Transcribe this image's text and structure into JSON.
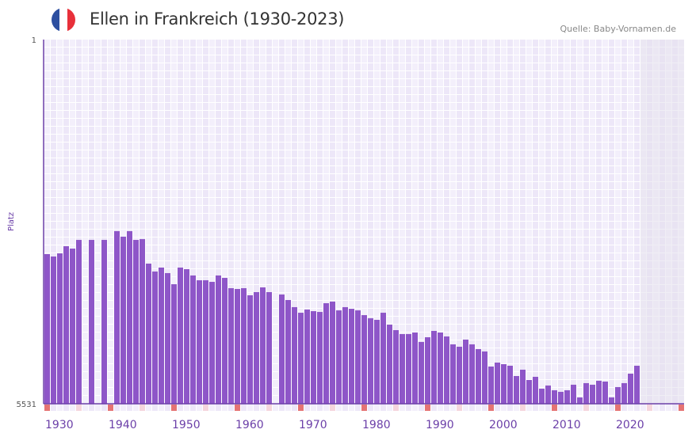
{
  "header": {
    "title": "Ellen in Frankreich (1930-2023)",
    "source": "Quelle: Baby-Vornamen.de",
    "flag_icon": "france-flag-icon",
    "flag_colors": [
      "#2d4fa0",
      "#ffffff",
      "#e8303a"
    ]
  },
  "colors": {
    "bar": "#8e56c8",
    "axis": "#6b3fa8",
    "marker_decade": "#e57373",
    "marker_half": "#f5d5dd",
    "future_shade": "#e4e0ec"
  },
  "chart_data": {
    "type": "bar",
    "title": "Ellen in Frankreich (1930-2023)",
    "xlabel": "",
    "ylabel": "Platz",
    "y_inverted": true,
    "ylim": [
      1,
      5531
    ],
    "ytick_labels": [
      "1",
      "5531"
    ],
    "xlim": [
      1930,
      2030
    ],
    "xtick_labels": [
      "1930",
      "1940",
      "1950",
      "1960",
      "1970",
      "1980",
      "1990",
      "2000",
      "2010",
      "2020"
    ],
    "grid": true,
    "x": [
      1930,
      1931,
      1932,
      1933,
      1934,
      1935,
      1936,
      1937,
      1938,
      1939,
      1940,
      1941,
      1942,
      1943,
      1944,
      1945,
      1946,
      1947,
      1948,
      1949,
      1950,
      1951,
      1952,
      1953,
      1954,
      1955,
      1956,
      1957,
      1958,
      1959,
      1960,
      1961,
      1962,
      1963,
      1964,
      1965,
      1966,
      1967,
      1968,
      1969,
      1970,
      1971,
      1972,
      1973,
      1974,
      1975,
      1976,
      1977,
      1978,
      1979,
      1980,
      1981,
      1982,
      1983,
      1984,
      1985,
      1986,
      1987,
      1988,
      1989,
      1990,
      1991,
      1992,
      1993,
      1994,
      1995,
      1996,
      1997,
      1998,
      1999,
      2000,
      2001,
      2002,
      2003,
      2004,
      2005,
      2006,
      2007,
      2008,
      2009,
      2010,
      2011,
      2012,
      2013,
      2014,
      2015,
      2016,
      2017,
      2018,
      2019,
      2020,
      2021,
      2022,
      2023
    ],
    "values": [
      3259,
      3295,
      3247,
      3139,
      3175,
      3043,
      null,
      3043,
      null,
      3043,
      null,
      2910,
      2994,
      2910,
      3043,
      3031,
      3403,
      3523,
      3463,
      3547,
      3716,
      3463,
      3487,
      3583,
      3656,
      3656,
      3680,
      3583,
      3620,
      3776,
      3788,
      3776,
      3884,
      3836,
      3764,
      3836,
      null,
      3872,
      3956,
      4064,
      4149,
      4101,
      4125,
      4137,
      4004,
      3980,
      4113,
      4064,
      4089,
      4113,
      4185,
      4233,
      4257,
      4149,
      4329,
      4413,
      4473,
      4473,
      4449,
      4593,
      4521,
      4425,
      4449,
      4509,
      4629,
      4665,
      4557,
      4629,
      4701,
      4737,
      4966,
      4906,
      4930,
      4954,
      5110,
      5014,
      5170,
      5122,
      5302,
      5254,
      5326,
      5350,
      5326,
      5242,
      5435,
      5218,
      5242,
      5182,
      5194,
      5435,
      5278,
      5218,
      5074,
      4954
    ]
  }
}
